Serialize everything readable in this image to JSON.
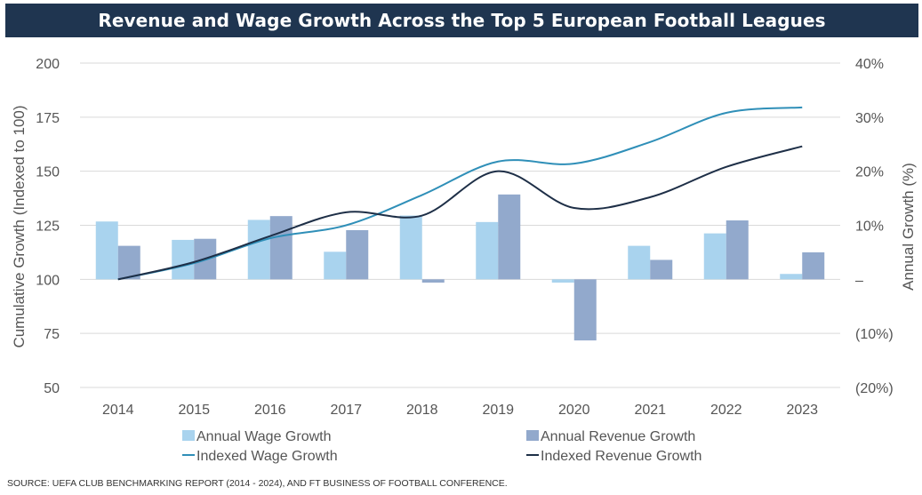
{
  "chart_data": {
    "type": "bar+line",
    "title": "Revenue and Wage Growth Across the Top 5 European Football Leagues",
    "categories": [
      "2014",
      "2015",
      "2016",
      "2017",
      "2018",
      "2019",
      "2020",
      "2021",
      "2022",
      "2023"
    ],
    "ylabel_left": "Cumulative Growth (Indexed to 100)",
    "ylabel_right": "Annual Growth (%)",
    "ylim_left": [
      50,
      200
    ],
    "yticks_left": [
      "200",
      "175",
      "150",
      "125",
      "100",
      "75",
      "50"
    ],
    "ylim_right": [
      -20,
      40
    ],
    "yticks_right": [
      "40%",
      "30%",
      "20%",
      "10%",
      "–",
      "(10%)",
      "(20%)"
    ],
    "grid": true,
    "legend_position": "bottom",
    "bar_series": [
      {
        "name": "Annual Wage Growth",
        "color": "#a9d3ee",
        "axis": "right",
        "values": [
          10.7,
          7.3,
          11.0,
          5.1,
          11.8,
          10.6,
          -0.6,
          6.2,
          8.5,
          1.0
        ]
      },
      {
        "name": "Annual Revenue Growth",
        "color": "#92a9cc",
        "axis": "right",
        "values": [
          6.2,
          7.5,
          11.7,
          9.1,
          -0.6,
          15.7,
          -11.3,
          3.6,
          10.9,
          5.0
        ]
      }
    ],
    "line_series": [
      {
        "name": "Indexed Wage Growth",
        "color": "#2f8fb8",
        "axis": "left",
        "values": [
          100.0,
          107.5,
          119.0,
          125.0,
          139.0,
          154.5,
          153.5,
          163.5,
          177.0,
          179.5
        ]
      },
      {
        "name": "Indexed Revenue Growth",
        "color": "#1e2f47",
        "axis": "left",
        "values": [
          100.0,
          108.0,
          120.0,
          131.0,
          129.5,
          150.0,
          133.0,
          138.0,
          152.0,
          161.5
        ]
      }
    ]
  },
  "source_note": "SOURCE: UEFA CLUB BENCHMARKING REPORT (2014 - 2024), AND FT BUSINESS OF FOOTBALL CONFERENCE."
}
